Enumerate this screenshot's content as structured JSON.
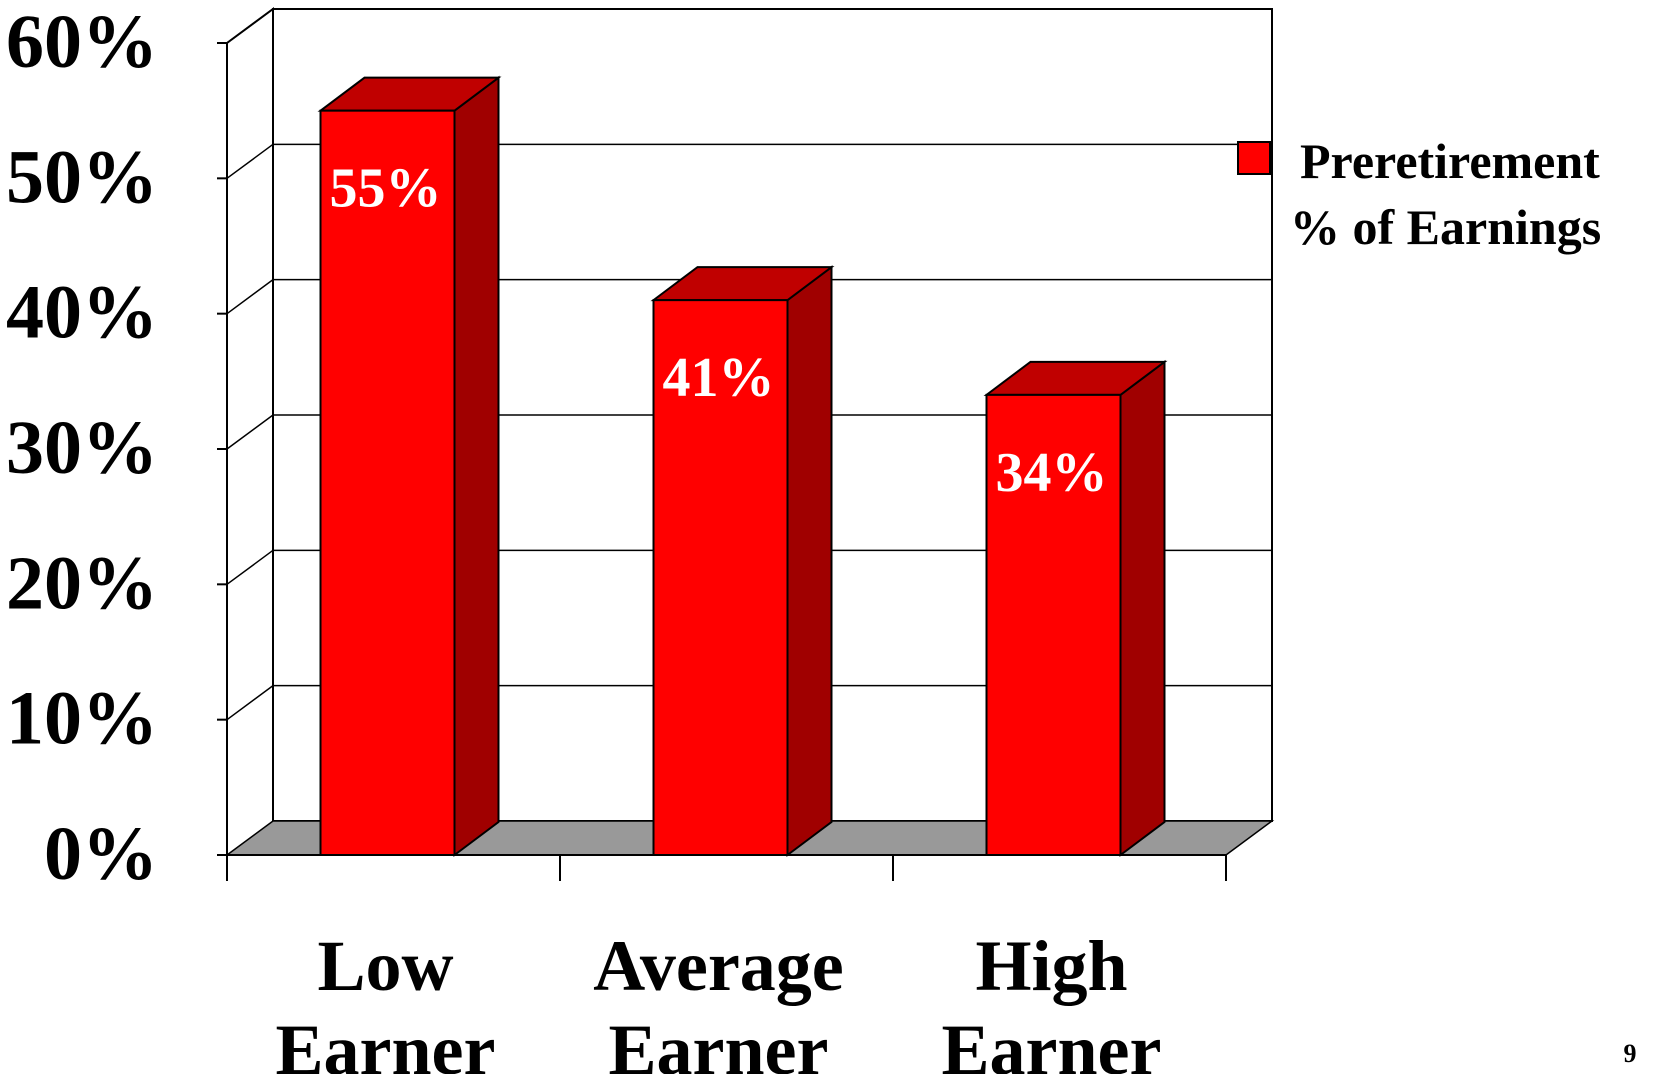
{
  "chart_data": {
    "type": "bar",
    "title": "",
    "xlabel": "",
    "ylabel": "",
    "categories": [
      [
        "Low",
        "Earner"
      ],
      [
        "Average",
        "Earner"
      ],
      [
        "High",
        "Earner"
      ]
    ],
    "series": [
      {
        "name": "Preretirement % of Earnings",
        "values": [
          55,
          41,
          34
        ],
        "color": "#ff0000"
      }
    ],
    "data_labels": [
      "55%",
      "41%",
      "34%"
    ],
    "ylim": [
      0,
      60
    ],
    "yticks": [
      {
        "value": 0,
        "label": "0%"
      },
      {
        "value": 10,
        "label": "10%"
      },
      {
        "value": 20,
        "label": "20%"
      },
      {
        "value": 30,
        "label": "30%"
      },
      {
        "value": 40,
        "label": "40%"
      },
      {
        "value": 50,
        "label": "50%"
      },
      {
        "value": 60,
        "label": "60%"
      }
    ],
    "grid": true,
    "legend": {
      "placement": "right",
      "lines": [
        "Preretirement",
        "% of Earnings"
      ]
    },
    "colors": {
      "bar_front": "#ff0000",
      "bar_top": "#c00000",
      "bar_side": "#a00000",
      "floor": "#999999"
    }
  },
  "page_number": "9"
}
